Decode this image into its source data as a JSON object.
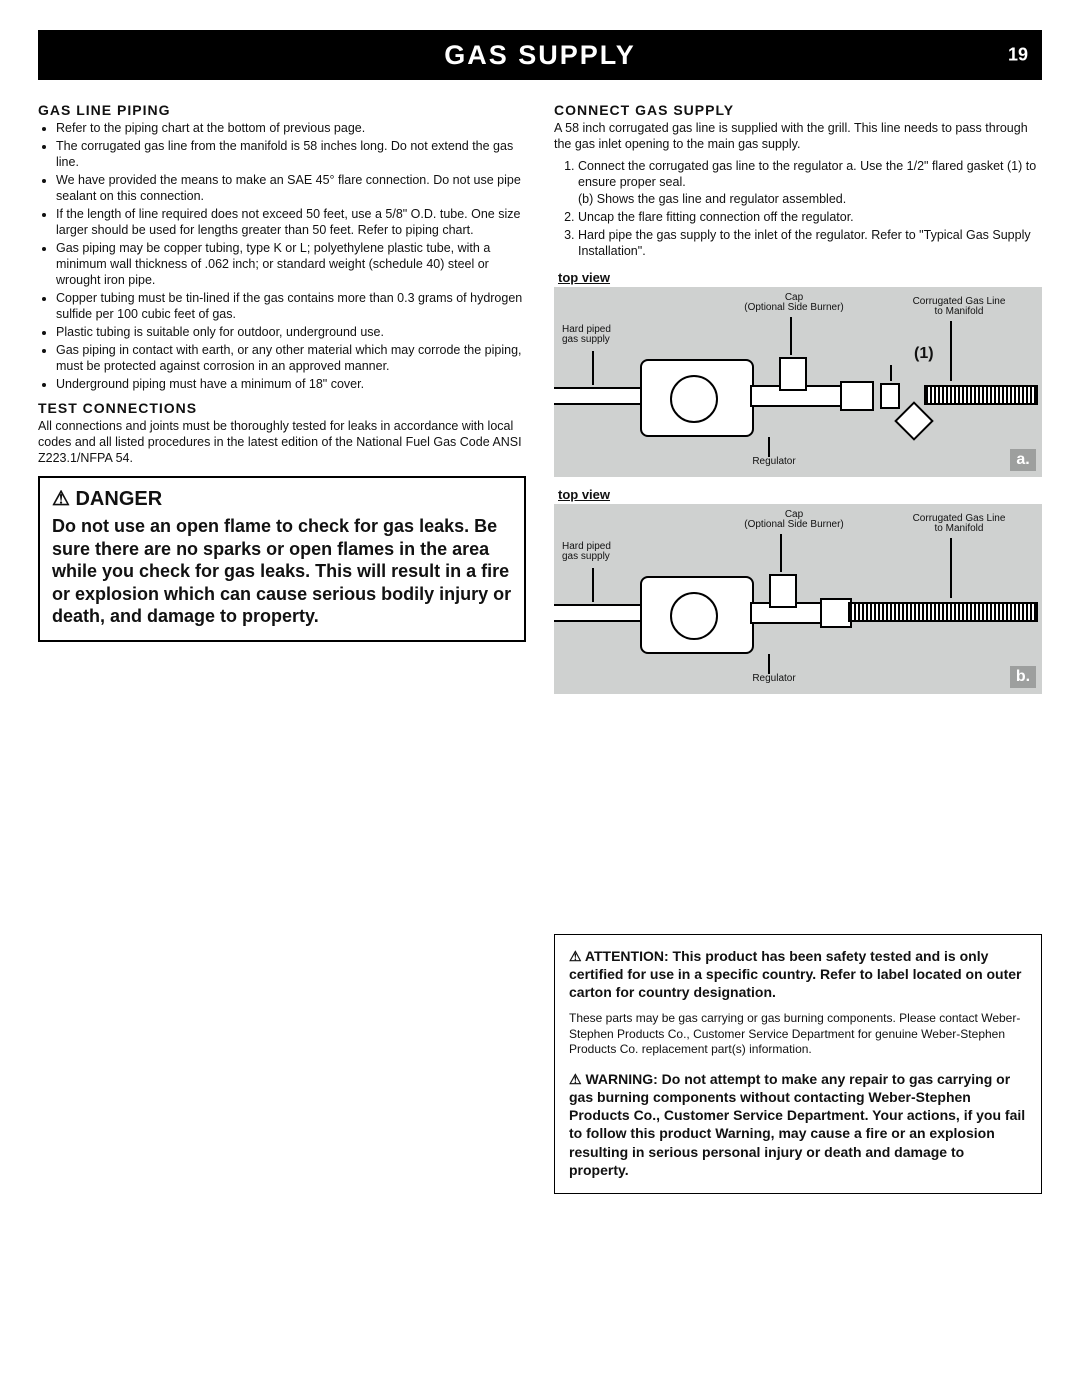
{
  "header": {
    "title": "GAS SUPPLY",
    "page_number": "19"
  },
  "left": {
    "piping": {
      "heading": "GAS LINE PIPING",
      "items": [
        "Refer to the piping chart at the bottom of previous page.",
        "The corrugated gas line from the manifold is 58 inches long. Do not extend the gas line.",
        "We have provided the means to make an SAE 45° flare connection. Do not use pipe sealant on this connection.",
        "If the length of line required does not exceed 50 feet, use a 5/8\" O.D. tube. One size larger should be used for lengths greater than 50 feet. Refer to piping chart.",
        "Gas piping may be copper tubing, type K or L; polyethylene plastic tube, with a minimum wall thickness of .062 inch; or standard weight (schedule 40) steel or wrought iron pipe.",
        "Copper tubing must be tin-lined if the gas contains more than 0.3 grams of hydrogen sulfide per 100 cubic feet of gas.",
        "Plastic tubing is suitable only for outdoor, underground use.",
        "Gas piping in contact with earth, or any other material which may corrode the piping, must be protected against corrosion in an approved manner.",
        "Underground piping must have a minimum of 18\" cover."
      ]
    },
    "test": {
      "heading": "TEST CONNECTIONS",
      "body": "All connections and joints must be thoroughly tested for leaks in accordance with local codes and all listed procedures in the latest edition of the National Fuel Gas Code ANSI Z223.1/NFPA 54."
    },
    "danger": {
      "heading": "⚠ DANGER",
      "body": "Do not use an open flame to check for gas leaks. Be sure there are no sparks or open flames in the area while you check for gas leaks. This will result in a fire or explosion which can cause serious bodily injury or death, and damage to property."
    }
  },
  "right": {
    "connect": {
      "heading": "CONNECT GAS SUPPLY",
      "intro": "A 58 inch corrugated gas line is supplied with the grill. This line needs to pass through the gas inlet opening to the main gas supply.",
      "steps": [
        "Connect the corrugated gas line to the regulator a. Use the 1/2\" flared gasket (1) to ensure proper seal.\n(b) Shows the gas line and regulator assembled.",
        "Uncap the flare fitting connection off the regulator.",
        "Hard pipe the gas supply to the inlet of the regulator. Refer to \"Typical Gas Supply Installation\"."
      ]
    },
    "figA": {
      "caption": "top view",
      "tag": "a.",
      "labels": {
        "cap": "Cap\n(Optional Side Burner)",
        "hard": "Hard piped\ngas supply",
        "corr": "Corrugated Gas Line\nto Manifold",
        "reg": "Regulator",
        "one": "(1)"
      }
    },
    "figB": {
      "caption": "top view",
      "tag": "b.",
      "labels": {
        "cap": "Cap\n(Optional Side Burner)",
        "hard": "Hard piped\ngas supply",
        "corr": "Corrugated Gas Line\nto Manifold",
        "reg": "Regulator"
      }
    },
    "notice": {
      "attention": "⚠ ATTENTION: This product has been safety tested and is only certified for use in a specific country. Refer to label located on outer carton for country designation.",
      "parts": "These parts may be gas carrying or gas burning components. Please contact Weber-Stephen Products Co., Customer Service Department for genuine Weber-Stephen Products Co. replacement part(s) information.",
      "warning": "⚠ WARNING: Do not attempt to make any repair to gas carrying or gas burning components without contacting Weber-Stephen Products Co., Customer Service Department. Your actions, if you fail to follow this product Warning, may cause a fire or an explosion resulting in serious personal injury or death and damage to property."
    }
  }
}
